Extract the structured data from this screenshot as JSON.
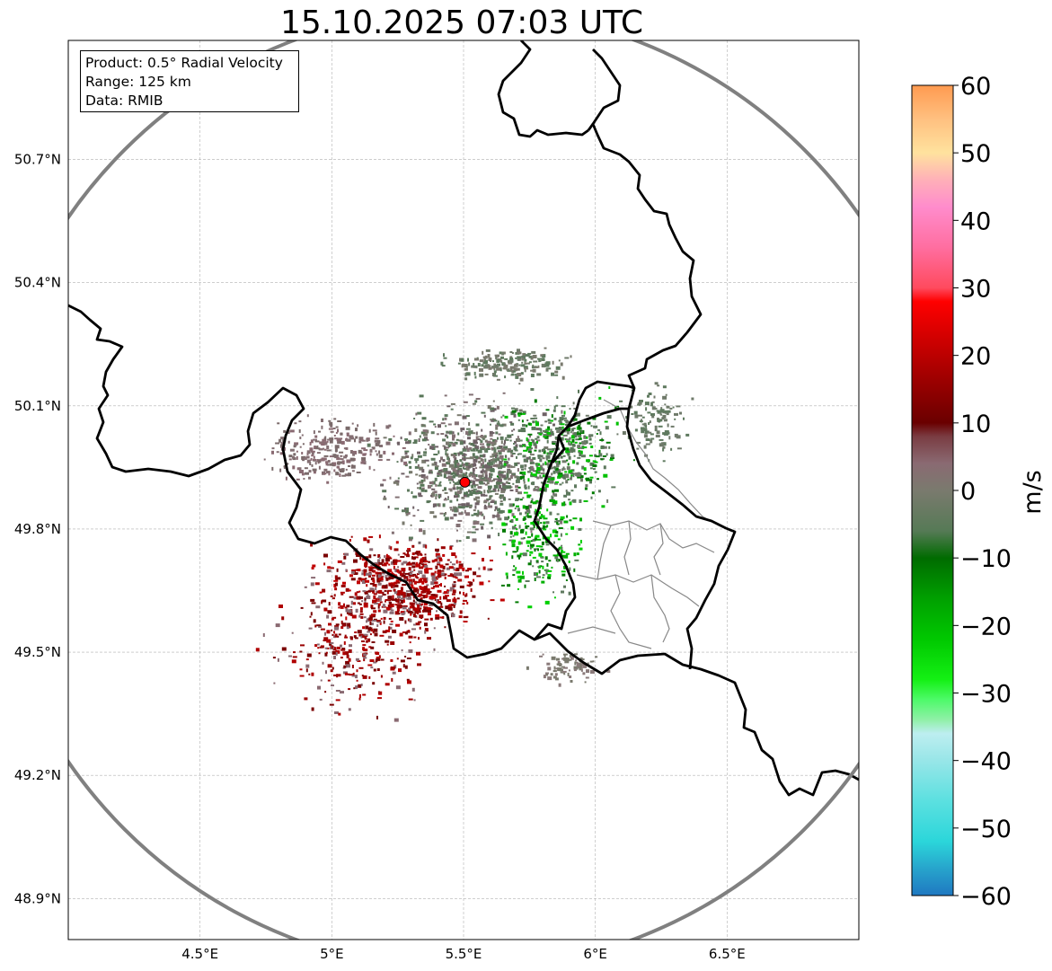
{
  "title": "15.10.2025 07:03 UTC",
  "info": {
    "product": "Product: 0.5° Radial Velocity",
    "range": "Range: 125 km",
    "data": "Data: RMIB"
  },
  "map": {
    "lon_range": [
      4.0,
      7.0
    ],
    "lat_range": [
      48.8,
      50.99
    ],
    "x_ticks": [
      {
        "value": 4.5,
        "label": "4.5°E"
      },
      {
        "value": 5.0,
        "label": "5°E"
      },
      {
        "value": 5.5,
        "label": "5.5°E"
      },
      {
        "value": 6.0,
        "label": "6°E"
      },
      {
        "value": 6.5,
        "label": "6.5°E"
      }
    ],
    "y_ticks": [
      {
        "value": 50.7,
        "label": "50.7°N"
      },
      {
        "value": 50.4,
        "label": "50.4°N"
      },
      {
        "value": 50.1,
        "label": "50.1°N"
      },
      {
        "value": 49.8,
        "label": "49.8°N"
      },
      {
        "value": 49.5,
        "label": "49.5°N"
      },
      {
        "value": 49.2,
        "label": "49.2°N"
      },
      {
        "value": 48.9,
        "label": "48.9°N"
      }
    ],
    "radar_site": {
      "lon": 5.505,
      "lat": 49.914,
      "color": "#ff0000"
    },
    "range_ring_color": "#808080"
  },
  "colorbar": {
    "unit": "m/s",
    "min": -60,
    "max": 60,
    "ticks": [
      {
        "value": 60,
        "label": "60"
      },
      {
        "value": 50,
        "label": "50"
      },
      {
        "value": 40,
        "label": "40"
      },
      {
        "value": 30,
        "label": "30"
      },
      {
        "value": 20,
        "label": "20"
      },
      {
        "value": 10,
        "label": "10"
      },
      {
        "value": 0,
        "label": "0"
      },
      {
        "value": -10,
        "label": "−10"
      },
      {
        "value": -20,
        "label": "−20"
      },
      {
        "value": -30,
        "label": "−30"
      },
      {
        "value": -40,
        "label": "−40"
      },
      {
        "value": -50,
        "label": "−50"
      },
      {
        "value": -60,
        "label": "−60"
      }
    ],
    "stops": [
      {
        "value": -60,
        "color": "#1f78c1"
      },
      {
        "value": -56,
        "color": "#27a4cc"
      },
      {
        "value": -52,
        "color": "#2bd6da"
      },
      {
        "value": -46,
        "color": "#5be0e0"
      },
      {
        "value": -40,
        "color": "#98e6e8"
      },
      {
        "value": -36,
        "color": "#bdeef0"
      },
      {
        "value": -34,
        "color": "#90f0a8"
      },
      {
        "value": -31,
        "color": "#4efa6a"
      },
      {
        "value": -28,
        "color": "#14f014"
      },
      {
        "value": -22,
        "color": "#00c800"
      },
      {
        "value": -16,
        "color": "#00a000"
      },
      {
        "value": -10,
        "color": "#006b00"
      },
      {
        "value": -6,
        "color": "#567a56"
      },
      {
        "value": 0,
        "color": "#7a7a6e"
      },
      {
        "value": 4,
        "color": "#8a6a72"
      },
      {
        "value": 8,
        "color": "#7a3c42"
      },
      {
        "value": 10,
        "color": "#6a0000"
      },
      {
        "value": 16,
        "color": "#9a0000"
      },
      {
        "value": 22,
        "color": "#cc0000"
      },
      {
        "value": 28,
        "color": "#ff0000"
      },
      {
        "value": 30,
        "color": "#ff4a5e"
      },
      {
        "value": 36,
        "color": "#ff6ea0"
      },
      {
        "value": 42,
        "color": "#ff8ccc"
      },
      {
        "value": 46,
        "color": "#ffb0b8"
      },
      {
        "value": 50,
        "color": "#ffe29e"
      },
      {
        "value": 55,
        "color": "#ffc080"
      },
      {
        "value": 60,
        "color": "#ff9a50"
      }
    ]
  }
}
